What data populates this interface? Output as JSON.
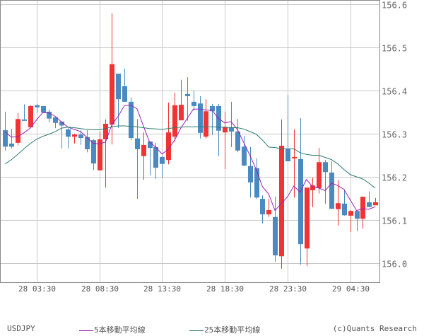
{
  "chart_data": {
    "type": "candlestick",
    "symbol": "USDJPY",
    "ylim": [
      155.96,
      156.61
    ],
    "y_ticks": [
      "156.0",
      "156.1",
      "156.2",
      "156.3",
      "156.4",
      "156.5",
      "156.6"
    ],
    "y_tick_values": [
      156.0,
      156.1,
      156.2,
      156.3,
      156.4,
      156.5,
      156.6
    ],
    "x_tick_labels": [
      "28 03:30",
      "28 08:30",
      "28 13:30",
      "28 18:30",
      "28 23:30",
      "29 04:30"
    ],
    "x_tick_candle_index": [
      5,
      15,
      25,
      35,
      45,
      55
    ],
    "interval": "30min",
    "grid": true,
    "ohlc_order": [
      "open",
      "high",
      "low",
      "close"
    ],
    "candles": [
      [
        156.308,
        156.351,
        156.261,
        156.27
      ],
      [
        156.277,
        156.311,
        156.266,
        156.27
      ],
      [
        156.279,
        156.348,
        156.273,
        156.334
      ],
      [
        156.333,
        156.368,
        156.33,
        156.331
      ],
      [
        156.315,
        156.366,
        156.315,
        156.364
      ],
      [
        156.366,
        156.369,
        156.349,
        156.361
      ],
      [
        156.364,
        156.364,
        156.349,
        156.349
      ],
      [
        156.351,
        156.356,
        156.326,
        156.335
      ],
      [
        156.338,
        156.338,
        156.313,
        156.325
      ],
      [
        156.328,
        156.328,
        156.266,
        156.319
      ],
      [
        156.31,
        156.313,
        156.266,
        156.293
      ],
      [
        156.293,
        156.3,
        156.277,
        156.298
      ],
      [
        156.298,
        156.308,
        156.274,
        156.29
      ],
      [
        156.292,
        156.308,
        156.257,
        156.264
      ],
      [
        156.285,
        156.287,
        156.216,
        156.231
      ],
      [
        156.215,
        156.305,
        156.215,
        156.287
      ],
      [
        156.287,
        156.333,
        156.175,
        156.323
      ],
      [
        156.321,
        156.579,
        156.275,
        156.461
      ],
      [
        156.439,
        156.439,
        156.313,
        156.38
      ],
      [
        156.41,
        156.451,
        156.374,
        156.374
      ],
      [
        156.374,
        156.384,
        156.285,
        156.29
      ],
      [
        156.289,
        156.334,
        156.149,
        156.264
      ],
      [
        156.248,
        156.303,
        156.193,
        156.274
      ],
      [
        156.282,
        156.282,
        156.203,
        156.267
      ],
      [
        156.269,
        156.279,
        156.195,
        156.221
      ],
      [
        156.246,
        156.249,
        156.197,
        156.23
      ],
      [
        156.239,
        156.372,
        156.229,
        156.303
      ],
      [
        156.293,
        156.395,
        156.282,
        156.366
      ],
      [
        156.331,
        156.425,
        156.331,
        156.367
      ],
      [
        156.392,
        156.431,
        156.33,
        156.387
      ],
      [
        156.374,
        156.4,
        156.354,
        156.364
      ],
      [
        156.37,
        156.387,
        156.289,
        156.302
      ],
      [
        156.293,
        156.38,
        156.289,
        156.352
      ],
      [
        156.364,
        156.369,
        156.297,
        156.352
      ],
      [
        156.364,
        156.369,
        156.248,
        156.307
      ],
      [
        156.303,
        156.351,
        156.218,
        156.315
      ],
      [
        156.315,
        156.374,
        156.269,
        156.305
      ],
      [
        156.305,
        156.334,
        156.257,
        156.261
      ],
      [
        156.27,
        156.295,
        156.225,
        156.226
      ],
      [
        156.225,
        156.269,
        156.152,
        156.187
      ],
      [
        156.22,
        156.243,
        156.149,
        156.152
      ],
      [
        156.149,
        156.157,
        156.092,
        156.113
      ],
      [
        156.113,
        156.149,
        156.107,
        156.123
      ],
      [
        156.107,
        156.154,
        156.003,
        156.018
      ],
      [
        156.016,
        156.333,
        155.987,
        156.272
      ],
      [
        156.264,
        156.39,
        156.236,
        156.236
      ],
      [
        156.243,
        156.31,
        156.152,
        156.246
      ],
      [
        156.241,
        156.336,
        155.997,
        156.044
      ],
      [
        156.034,
        156.175,
        155.993,
        156.175
      ],
      [
        156.169,
        156.198,
        156.13,
        156.18
      ],
      [
        156.174,
        156.267,
        156.161,
        156.234
      ],
      [
        156.234,
        156.239,
        156.138,
        156.211
      ],
      [
        156.21,
        156.236,
        156.125,
        156.126
      ],
      [
        156.125,
        156.192,
        156.087,
        156.139
      ],
      [
        156.138,
        156.17,
        156.11,
        156.111
      ],
      [
        156.11,
        156.123,
        156.072,
        156.121
      ],
      [
        156.121,
        156.123,
        156.074,
        156.103
      ],
      [
        156.103,
        156.154,
        156.08,
        156.154
      ],
      [
        156.141,
        156.166,
        156.13,
        156.13
      ],
      [
        156.134,
        156.151,
        156.134,
        156.141
      ]
    ],
    "series": [
      {
        "name": "5本移動平均線",
        "color": "#9b1fb5",
        "values": [
          156.304,
          156.292,
          156.293,
          156.302,
          156.313,
          156.332,
          156.349,
          156.348,
          156.34,
          156.327,
          156.315,
          156.31,
          156.305,
          156.292,
          156.278,
          156.276,
          156.281,
          156.321,
          156.34,
          156.365,
          156.366,
          156.358,
          156.319,
          156.281,
          156.269,
          156.253,
          156.264,
          156.285,
          156.313,
          156.335,
          156.357,
          156.357,
          156.355,
          156.354,
          156.335,
          156.325,
          156.328,
          156.31,
          156.28,
          156.25,
          156.217,
          156.177,
          156.16,
          156.122,
          156.138,
          156.154,
          156.179,
          156.164,
          156.194,
          156.177,
          156.174,
          156.168,
          156.185,
          156.18,
          156.171,
          156.146,
          156.122,
          156.126,
          156.125,
          156.131
        ]
      },
      {
        "name": "25本移動平均線",
        "color": "#2a7a6e",
        "values": [
          156.23,
          156.24,
          156.252,
          156.265,
          156.277,
          156.287,
          156.294,
          156.299,
          156.305,
          156.313,
          156.315,
          156.314,
          156.312,
          156.31,
          156.309,
          156.309,
          156.312,
          156.316,
          156.318,
          156.318,
          156.317,
          156.316,
          156.314,
          156.312,
          156.311,
          156.31,
          156.312,
          156.314,
          156.315,
          156.316,
          156.316,
          156.316,
          156.316,
          156.316,
          156.315,
          156.315,
          156.314,
          156.314,
          156.311,
          156.305,
          156.299,
          156.285,
          156.269,
          156.268,
          156.265,
          156.265,
          156.265,
          156.256,
          156.252,
          156.25,
          156.25,
          156.245,
          156.24,
          156.23,
          156.217,
          156.205,
          156.2,
          156.195,
          156.185,
          156.174
        ]
      }
    ],
    "up_color": "#f23333",
    "down_color": "#4a8ac0",
    "legend_placement": "bottom"
  },
  "legend": {
    "symbol": "USDJPY",
    "ma5": "5本移動平均線",
    "ma25": "25本移動平均線",
    "copyright": "(c)Quants Research"
  }
}
